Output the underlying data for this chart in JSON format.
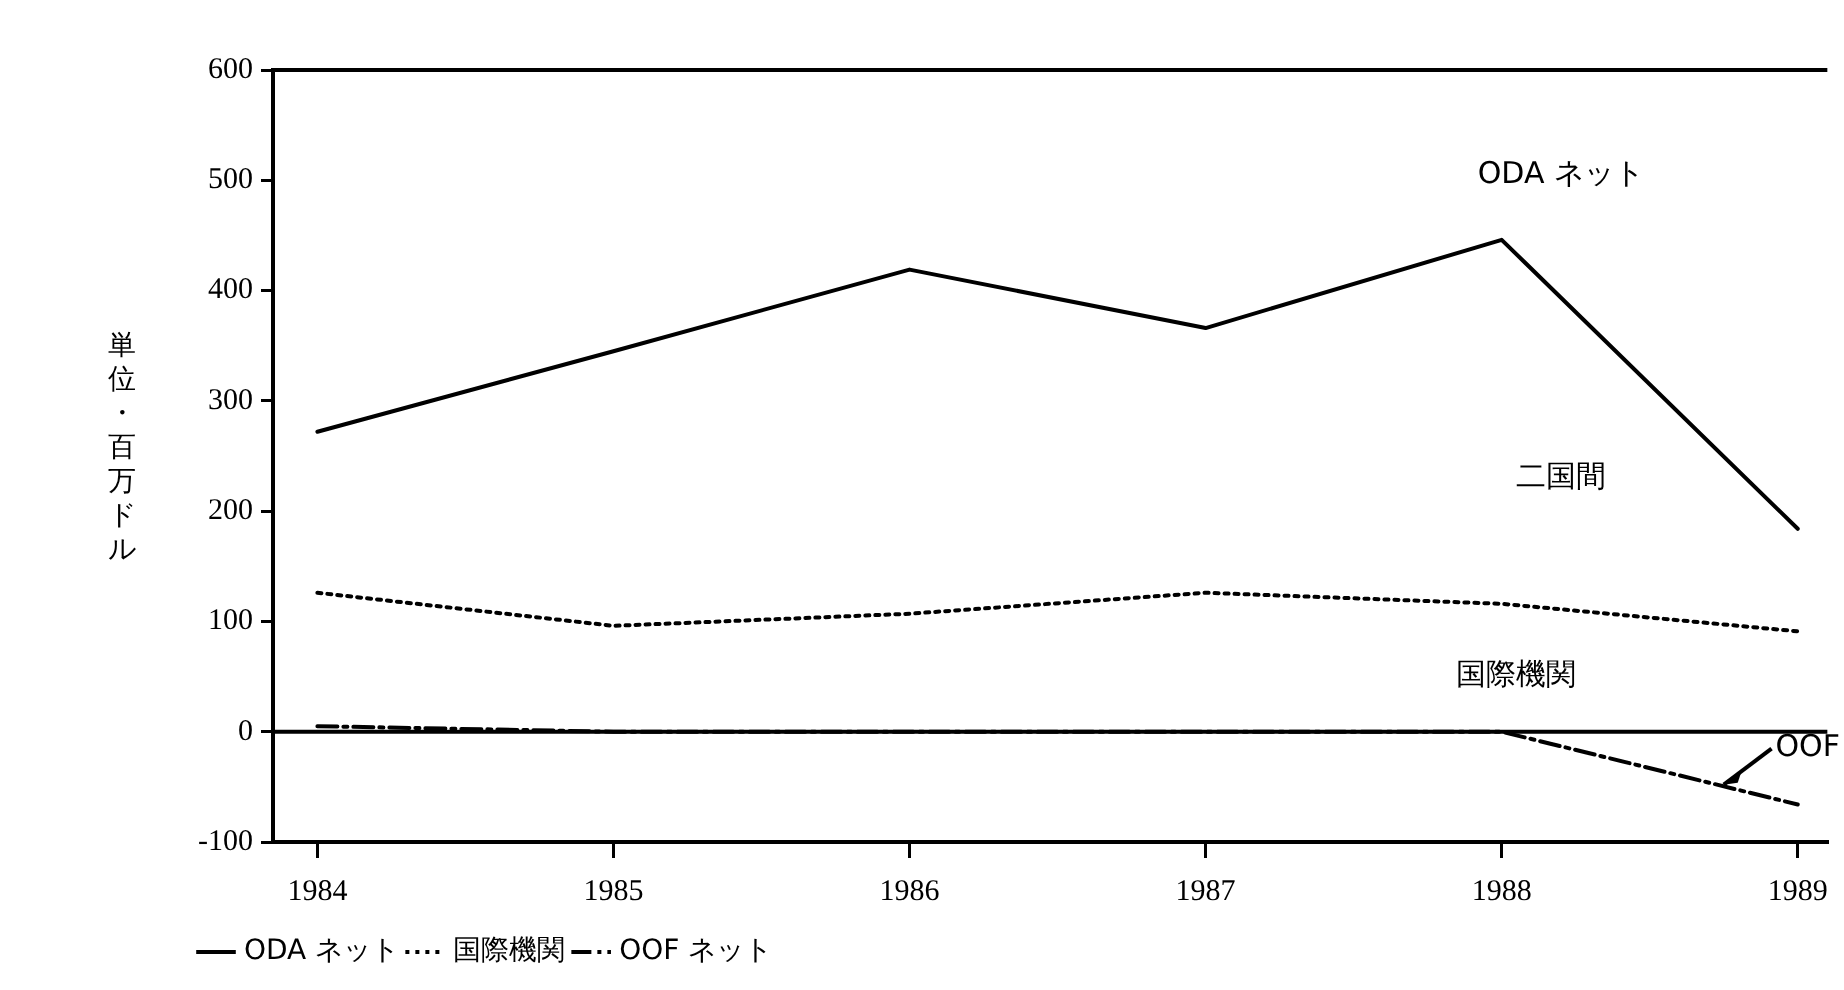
{
  "chart_data": {
    "type": "line",
    "ylabel": "単位・百万ドル",
    "x": [
      1984,
      1985,
      1986,
      1987,
      1988,
      1989
    ],
    "xlim": [
      1983.85,
      1989.1
    ],
    "xticks": [
      1984,
      1985,
      1986,
      1987,
      1988,
      1989
    ],
    "ylim": [
      -100,
      600
    ],
    "yticks": [
      -100,
      0,
      100,
      200,
      300,
      400,
      500,
      600
    ],
    "series": [
      {
        "name": "ODA ネット",
        "color": "#000000",
        "line_style": "solid",
        "values": [
          272,
          345,
          419,
          366,
          446,
          184
        ]
      },
      {
        "name": "国際機関",
        "color": "#000000",
        "line_style": "dotted",
        "values": [
          126,
          96,
          107,
          126,
          116,
          91
        ]
      },
      {
        "name": "OOF ネット",
        "color": "#000000",
        "line_style": "dashed",
        "values": [
          5,
          0,
          0,
          0,
          0,
          -66
        ]
      }
    ],
    "ref_lines": [
      {
        "axis": "y",
        "value": 0,
        "color": "#000000"
      }
    ],
    "annotations": [
      "ODA ネット",
      "二国間",
      "国際機関",
      {
        "text": "OOF",
        "x": 1988.75,
        "y": -48
      }
    ],
    "grid": false,
    "legend": "bottom",
    "marker": "none"
  }
}
